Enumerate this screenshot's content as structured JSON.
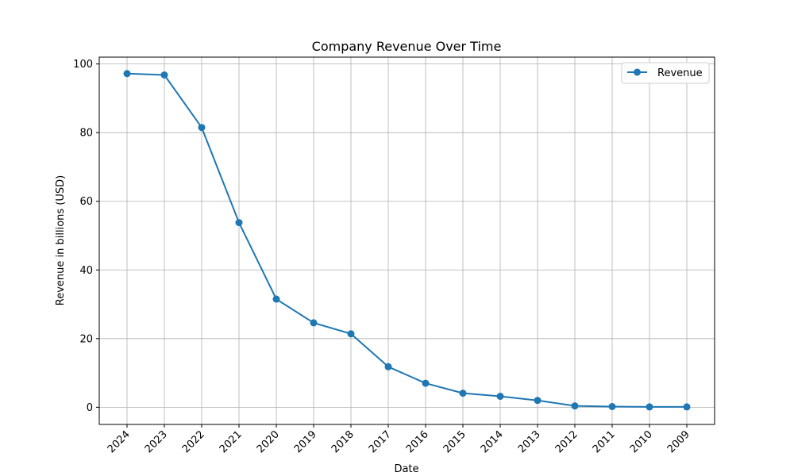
{
  "chart_data": {
    "type": "line",
    "title": "Company Revenue Over Time",
    "xlabel": "Date",
    "ylabel": "Revenue in billions (USD)",
    "categories": [
      "2024",
      "2023",
      "2022",
      "2021",
      "2020",
      "2019",
      "2018",
      "2017",
      "2016",
      "2015",
      "2014",
      "2013",
      "2012",
      "2011",
      "2010",
      "2009"
    ],
    "series": [
      {
        "name": "Revenue",
        "color": "#1f77b4",
        "marker": "circle",
        "values": [
          97.2,
          96.8,
          81.5,
          53.8,
          31.5,
          24.6,
          21.4,
          11.8,
          7.0,
          4.1,
          3.2,
          2.0,
          0.4,
          0.2,
          0.1,
          0.1
        ]
      }
    ],
    "ylim": [
      -5,
      102
    ],
    "yticks": [
      0,
      20,
      40,
      60,
      80,
      100
    ],
    "grid": true,
    "legend_position": "top-right"
  }
}
